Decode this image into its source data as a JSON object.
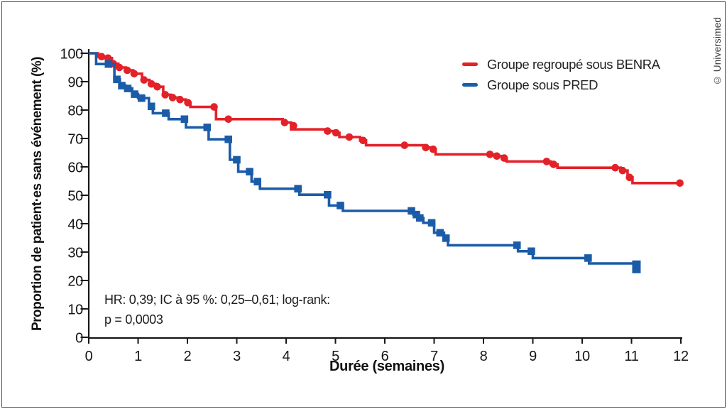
{
  "copyright": "© Universimed",
  "chart_data": {
    "type": "line",
    "subtype": "kaplan-meier-step",
    "title": "",
    "xlabel": "Durée (semaines)",
    "ylabel": "Proportion de patient·es sans événement (%)",
    "xlim": [
      0,
      12
    ],
    "ylim": [
      0,
      100
    ],
    "xticks": [
      0,
      1,
      2,
      3,
      4,
      5,
      6,
      7,
      8,
      9,
      10,
      11,
      12
    ],
    "yticks": [
      100,
      90,
      80,
      70,
      60,
      50,
      40,
      30,
      20,
      10,
      0
    ],
    "grid": false,
    "axis_color": "#161616",
    "legend_position": "upper-right-inside",
    "legend": [
      {
        "label": "Groupe regroupé sous BENRA",
        "color": "#e32128"
      },
      {
        "label": "Groupe sous PRED",
        "color": "#1b5ca8"
      }
    ],
    "annotation": {
      "line1": "HR: 0,39; IC à 95 %: 0,25–0,61; log-rank:",
      "line2": "p = 0,0003"
    },
    "series": [
      {
        "name": "Groupe regroupé sous BENRA",
        "color": "#e32128",
        "marker": "circle",
        "end_time": 12.0,
        "steps": [
          [
            0,
            100
          ],
          [
            0.19,
            98.8
          ],
          [
            0.35,
            98.3
          ],
          [
            0.47,
            96.3
          ],
          [
            0.6,
            95
          ],
          [
            0.75,
            94
          ],
          [
            0.9,
            92.8
          ],
          [
            1.08,
            90.6
          ],
          [
            1.23,
            89.2
          ],
          [
            1.36,
            88.2
          ],
          [
            1.51,
            85.4
          ],
          [
            1.66,
            84.4
          ],
          [
            1.81,
            83.7
          ],
          [
            1.96,
            82.6
          ],
          [
            2.06,
            81.1
          ],
          [
            2.58,
            76.8
          ],
          [
            3.93,
            75.6
          ],
          [
            4.1,
            73.2
          ],
          [
            4.8,
            72.6
          ],
          [
            4.97,
            72
          ],
          [
            5.08,
            70.5
          ],
          [
            5.5,
            69.3
          ],
          [
            5.62,
            67.6
          ],
          [
            6.78,
            66.8
          ],
          [
            6.94,
            66.2
          ],
          [
            7.03,
            64.4
          ],
          [
            8.22,
            63.8
          ],
          [
            8.38,
            63.1
          ],
          [
            8.47,
            61.9
          ],
          [
            9.36,
            60.9
          ],
          [
            9.5,
            59.7
          ],
          [
            10.78,
            58.7
          ],
          [
            10.92,
            56.3
          ],
          [
            11.02,
            54.3
          ]
        ],
        "censor_marks": [
          [
            0.26,
            98.8
          ],
          [
            0.39,
            98.3
          ],
          [
            0.5,
            96.3
          ],
          [
            0.62,
            95
          ],
          [
            0.78,
            94
          ],
          [
            0.92,
            92.8
          ],
          [
            1.12,
            90.6
          ],
          [
            1.27,
            89.2
          ],
          [
            1.39,
            88.2
          ],
          [
            1.55,
            85.4
          ],
          [
            1.7,
            84.4
          ],
          [
            1.85,
            83.7
          ],
          [
            2.01,
            82.6
          ],
          [
            2.54,
            81.1
          ],
          [
            2.83,
            76.8
          ],
          [
            3.97,
            75.6
          ],
          [
            4.15,
            74.5
          ],
          [
            4.84,
            72.6
          ],
          [
            5.01,
            72
          ],
          [
            5.28,
            70.5
          ],
          [
            5.56,
            69.3
          ],
          [
            6.4,
            67.6
          ],
          [
            6.83,
            66.8
          ],
          [
            6.98,
            66.2
          ],
          [
            8.13,
            64.4
          ],
          [
            8.27,
            63.8
          ],
          [
            8.42,
            63.1
          ],
          [
            9.28,
            61.9
          ],
          [
            9.42,
            60.9
          ],
          [
            10.67,
            59.7
          ],
          [
            10.82,
            58.7
          ],
          [
            10.96,
            56.3
          ],
          [
            11.98,
            54.3
          ]
        ]
      },
      {
        "name": "Groupe sous PRED",
        "color": "#1b5ca8",
        "marker": "square",
        "end_time": 11.15,
        "steps": [
          [
            0,
            100
          ],
          [
            0.15,
            96.2
          ],
          [
            0.52,
            90.8
          ],
          [
            0.63,
            88.6
          ],
          [
            0.75,
            87.6
          ],
          [
            0.88,
            85.6
          ],
          [
            1.0,
            84.2
          ],
          [
            1.22,
            81.3
          ],
          [
            1.3,
            78.9
          ],
          [
            1.62,
            76.8
          ],
          [
            1.97,
            73.9
          ],
          [
            2.43,
            69.7
          ],
          [
            2.86,
            62.5
          ],
          [
            3.03,
            58.3
          ],
          [
            3.3,
            54.8
          ],
          [
            3.47,
            52.3
          ],
          [
            4.27,
            50.2
          ],
          [
            4.87,
            46.4
          ],
          [
            5.15,
            44.5
          ],
          [
            6.58,
            43.2
          ],
          [
            6.68,
            42
          ],
          [
            6.78,
            40.3
          ],
          [
            7.0,
            36.8
          ],
          [
            7.2,
            34.9
          ],
          [
            7.28,
            32.4
          ],
          [
            8.7,
            30.3
          ],
          [
            9.0,
            27.9
          ],
          [
            10.14,
            26
          ],
          [
            11.05,
            24.8
          ]
        ],
        "censor_marks": [
          [
            0.4,
            96.2
          ],
          [
            0.57,
            90.8
          ],
          [
            0.67,
            88.6
          ],
          [
            0.79,
            87.6
          ],
          [
            0.93,
            85.6
          ],
          [
            1.07,
            84.2
          ],
          [
            1.27,
            81.3
          ],
          [
            1.56,
            78.9
          ],
          [
            1.94,
            76.8
          ],
          [
            2.4,
            73.9
          ],
          [
            2.83,
            69.7
          ],
          [
            3.0,
            62.5
          ],
          [
            3.26,
            58.3
          ],
          [
            3.42,
            54.8
          ],
          [
            4.24,
            52.3
          ],
          [
            4.84,
            50.2
          ],
          [
            5.1,
            46.4
          ],
          [
            6.54,
            44.5
          ],
          [
            6.64,
            43.2
          ],
          [
            6.71,
            42
          ],
          [
            6.95,
            40.3
          ],
          [
            7.12,
            36.8
          ],
          [
            7.24,
            34.9
          ],
          [
            8.68,
            32.4
          ],
          [
            8.97,
            30.3
          ],
          [
            10.12,
            27.9
          ]
        ],
        "final_mark": {
          "t": 11.1,
          "p": 24.8,
          "w": 12,
          "h": 18
        }
      }
    ]
  }
}
